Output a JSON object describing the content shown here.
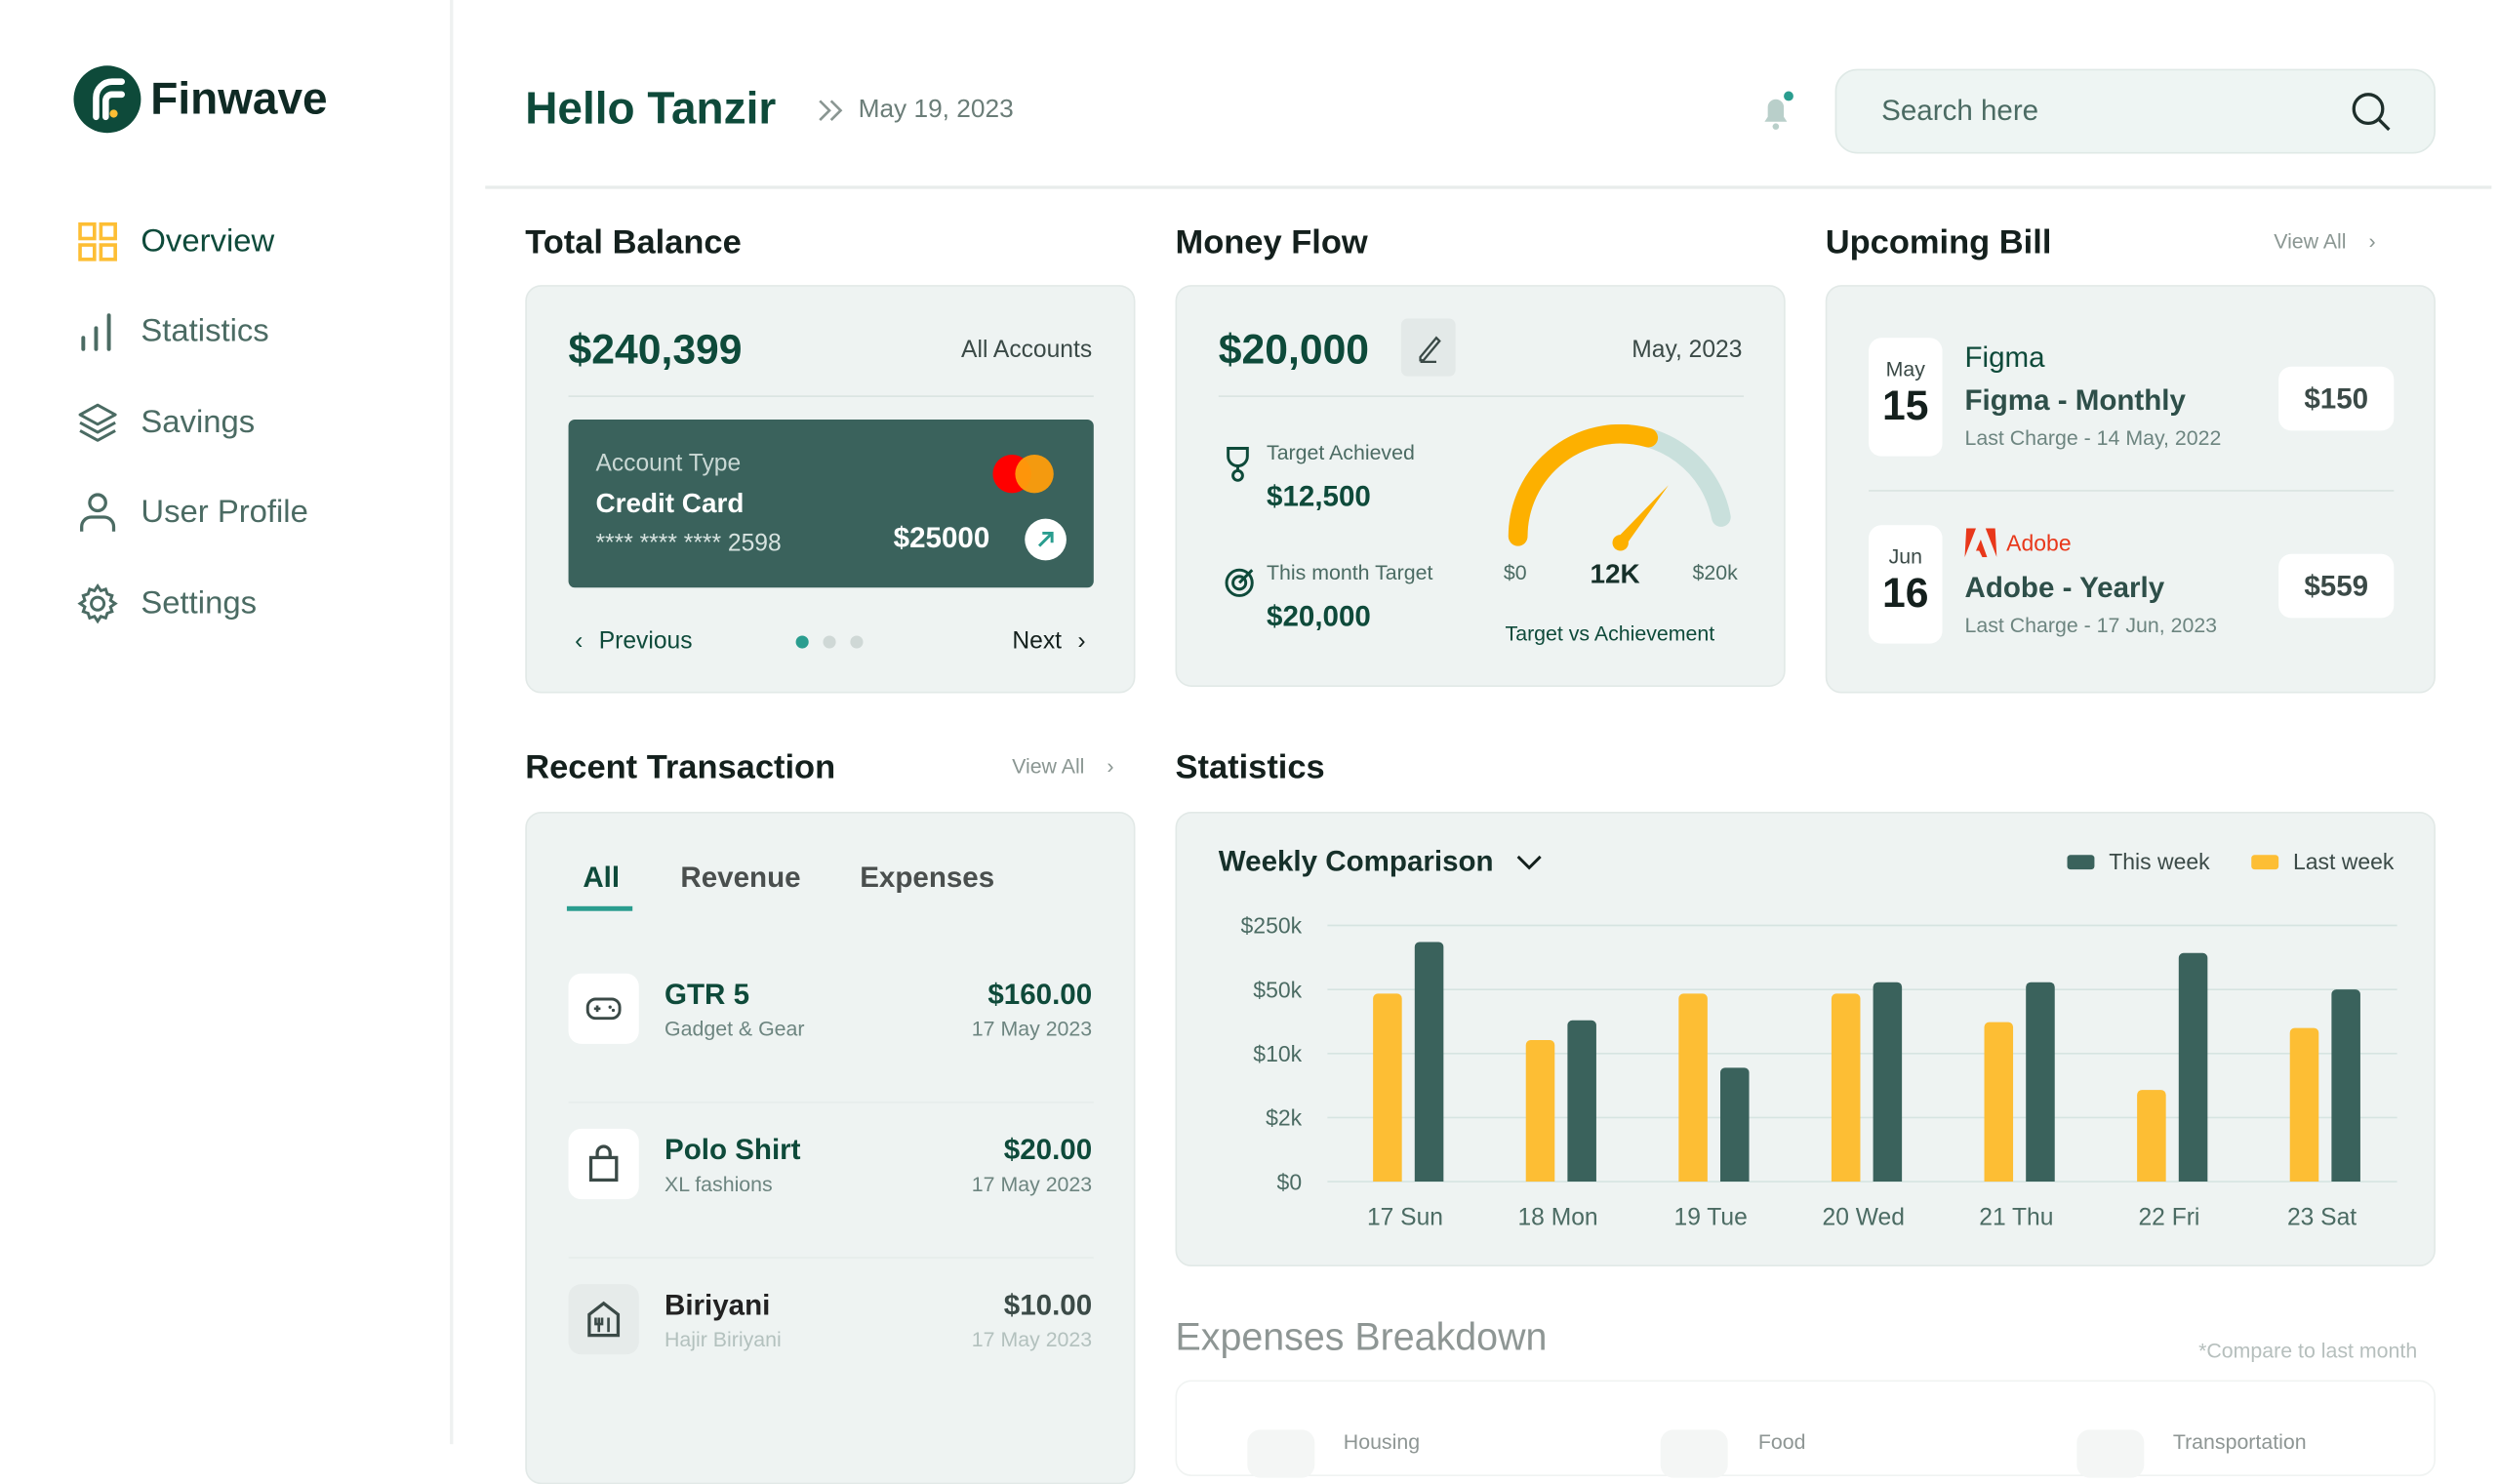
{
  "brand": {
    "name": "Finwave"
  },
  "sidebar": {
    "items": [
      {
        "label": "Overview",
        "icon": "grid-icon",
        "active": true
      },
      {
        "label": "Statistics",
        "icon": "bar-chart-icon"
      },
      {
        "label": "Savings",
        "icon": "layers-icon"
      },
      {
        "label": "User Profile",
        "icon": "user-icon"
      },
      {
        "label": "Settings",
        "icon": "gear-icon"
      }
    ]
  },
  "header": {
    "greeting": "Hello Tanzir",
    "date": "May 19, 2023",
    "search_placeholder": "Search here"
  },
  "total_balance": {
    "title": "Total Balance",
    "amount": "$240,399",
    "accounts": "All Accounts",
    "card": {
      "type_label": "Account Type",
      "type": "Credit Card",
      "number": "**** **** **** 2598",
      "balance": "$25000"
    },
    "prev": "Previous",
    "next": "Next",
    "page_index": 0,
    "pages": 3
  },
  "money_flow": {
    "title": "Money Flow",
    "amount": "$20,000",
    "month": "May, 2023",
    "achieved_label": "Target Achieved",
    "achieved": "$12,500",
    "target_label": "This month Target",
    "target": "$20,000",
    "gauge": {
      "min": "$0",
      "max": "$20k",
      "value": "12K",
      "fraction": 0.625,
      "caption": "Target vs Achievement"
    }
  },
  "upcoming_bill": {
    "title": "Upcoming Bill",
    "view_all": "View All",
    "bills": [
      {
        "month": "May",
        "day": "15",
        "brand": "Figma",
        "name": "Figma - Monthly",
        "last": "Last Charge - 14 May, 2022",
        "amount": "$150"
      },
      {
        "month": "Jun",
        "day": "16",
        "brand": "Adobe",
        "name": "Adobe - Yearly",
        "last": "Last Charge - 17 Jun, 2023",
        "amount": "$559"
      }
    ]
  },
  "recent": {
    "title": "Recent Transaction",
    "view_all": "View All",
    "tabs": [
      "All",
      "Revenue",
      "Expenses"
    ],
    "active_tab": 0,
    "items": [
      {
        "name": "GTR 5",
        "sub": "Gadget & Gear",
        "amount": "$160.00",
        "date": "17 May 2023",
        "icon": "gamepad-icon"
      },
      {
        "name": "Polo Shirt",
        "sub": "XL fashions",
        "amount": "$20.00",
        "date": "17 May 2023",
        "icon": "shopping-bag-icon"
      },
      {
        "name": "Biriyani",
        "sub": "Hajir Biriyani",
        "amount": "$10.00",
        "date": "17 May 2023",
        "icon": "restaurant-icon"
      }
    ]
  },
  "statistics": {
    "title": "Statistics",
    "dropdown": "Weekly Comparison"
  },
  "chart_data": {
    "type": "bar",
    "categories": [
      "17 Sun",
      "18 Mon",
      "19 Tue",
      "20 Wed",
      "21 Thu",
      "22 Fri",
      "23 Sat"
    ],
    "yticks": [
      "$0",
      "$2k",
      "$10k",
      "$50k",
      "$250k"
    ],
    "ytick_values": [
      0,
      2000,
      10000,
      50000,
      250000
    ],
    "grid": true,
    "legend": "top-right",
    "series": [
      {
        "name": "Last week",
        "color": "#fdbe34",
        "values": [
          45000,
          14000,
          45000,
          45000,
          22000,
          4000,
          19000
        ]
      },
      {
        "name": "This week",
        "color": "#3a625c",
        "values": [
          165000,
          23000,
          7000,
          60000,
          60000,
          125000,
          50000
        ]
      }
    ]
  },
  "expenses": {
    "title": "Expenses Breakdown",
    "note": "*Compare to last month",
    "categories": [
      "Housing",
      "Food",
      "Transportation"
    ]
  },
  "colors": {
    "primary": "#0e4a3a",
    "accent": "#fdbe34",
    "teal": "#2a9d8f"
  }
}
